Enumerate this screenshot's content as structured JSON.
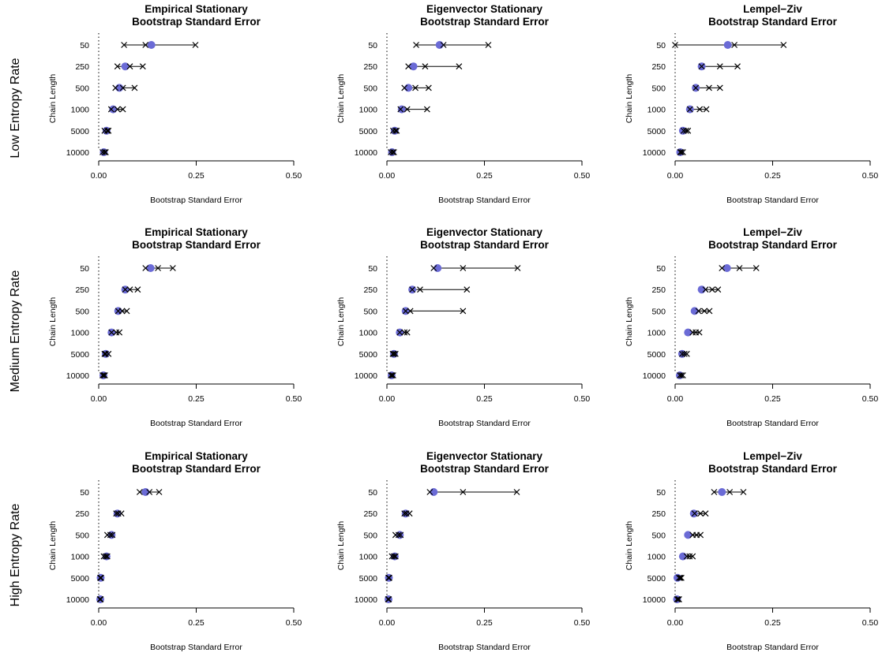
{
  "chart_data": {
    "type": "dot-range",
    "rows": [
      "Low Entropy Rate",
      "Medium Entropy Rate",
      "High Entropy Rate"
    ],
    "columns": [
      {
        "title_line1": "Empirical Stationary",
        "title_line2": "Bootstrap Standard Error"
      },
      {
        "title_line1": "Eigenvector Stationary",
        "title_line2": "Bootstrap Standard Error"
      },
      {
        "title_line1": "Lempel−Ziv",
        "title_line2": "Bootstrap Standard Error"
      }
    ],
    "xlabel": "Bootstrap Standard Error",
    "ylabel": "Chain Length",
    "xlim": [
      0,
      0.5
    ],
    "xticks": [
      "0.00",
      "0.25",
      "0.50"
    ],
    "categories": [
      "50",
      "250",
      "500",
      "1000",
      "5000",
      "10000"
    ],
    "reference_line_x": 0,
    "point_color": "#6b6bd6",
    "panels": [
      [
        [
          {
            "point": 0.135,
            "crosses": [
              0.065,
              0.12,
              0.248
            ]
          },
          {
            "point": 0.068,
            "crosses": [
              0.048,
              0.08,
              0.113
            ]
          },
          {
            "point": 0.053,
            "crosses": [
              0.043,
              0.062,
              0.092
            ]
          },
          {
            "point": 0.037,
            "crosses": [
              0.032,
              0.048,
              0.062
            ]
          },
          {
            "point": 0.02,
            "crosses": [
              0.015,
              0.022,
              0.025
            ]
          },
          {
            "point": 0.013,
            "crosses": [
              0.01,
              0.015,
              0.018
            ]
          }
        ],
        [
          {
            "point": 0.135,
            "crosses": [
              0.075,
              0.145,
              0.26
            ]
          },
          {
            "point": 0.068,
            "crosses": [
              0.055,
              0.098,
              0.185
            ]
          },
          {
            "point": 0.055,
            "crosses": [
              0.045,
              0.073,
              0.107
            ]
          },
          {
            "point": 0.038,
            "crosses": [
              0.035,
              0.052,
              0.103
            ]
          },
          {
            "point": 0.02,
            "crosses": [
              0.016,
              0.022,
              0.025
            ]
          },
          {
            "point": 0.013,
            "crosses": [
              0.01,
              0.015,
              0.018
            ]
          }
        ],
        [
          {
            "point": 0.135,
            "crosses": [
              0.0,
              0.152,
              0.278
            ]
          },
          {
            "point": 0.068,
            "crosses": [
              0.068,
              0.115,
              0.16
            ]
          },
          {
            "point": 0.053,
            "crosses": [
              0.053,
              0.087,
              0.115
            ]
          },
          {
            "point": 0.038,
            "crosses": [
              0.038,
              0.063,
              0.08
            ]
          },
          {
            "point": 0.02,
            "crosses": [
              0.022,
              0.028,
              0.033
            ]
          },
          {
            "point": 0.013,
            "crosses": [
              0.013,
              0.016,
              0.02
            ]
          }
        ]
      ],
      [
        [
          {
            "point": 0.133,
            "crosses": [
              0.12,
              0.152,
              0.19
            ]
          },
          {
            "point": 0.068,
            "crosses": [
              0.068,
              0.08,
              0.1
            ]
          },
          {
            "point": 0.05,
            "crosses": [
              0.05,
              0.06,
              0.072
            ]
          },
          {
            "point": 0.033,
            "crosses": [
              0.033,
              0.045,
              0.053
            ]
          },
          {
            "point": 0.018,
            "crosses": [
              0.015,
              0.018,
              0.025
            ]
          },
          {
            "point": 0.012,
            "crosses": [
              0.01,
              0.013,
              0.016
            ]
          }
        ],
        [
          {
            "point": 0.13,
            "crosses": [
              0.12,
              0.195,
              0.335
            ]
          },
          {
            "point": 0.065,
            "crosses": [
              0.065,
              0.085,
              0.205
            ]
          },
          {
            "point": 0.048,
            "crosses": [
              0.048,
              0.06,
              0.195
            ]
          },
          {
            "point": 0.033,
            "crosses": [
              0.033,
              0.045,
              0.052
            ]
          },
          {
            "point": 0.018,
            "crosses": [
              0.015,
              0.018,
              0.022
            ]
          },
          {
            "point": 0.012,
            "crosses": [
              0.01,
              0.013,
              0.016
            ]
          }
        ],
        [
          {
            "point": 0.133,
            "crosses": [
              0.12,
              0.165,
              0.208
            ]
          },
          {
            "point": 0.068,
            "crosses": [
              0.078,
              0.095,
              0.11
            ]
          },
          {
            "point": 0.05,
            "crosses": [
              0.06,
              0.075,
              0.088
            ]
          },
          {
            "point": 0.033,
            "crosses": [
              0.045,
              0.053,
              0.062
            ]
          },
          {
            "point": 0.018,
            "crosses": [
              0.018,
              0.024,
              0.03
            ]
          },
          {
            "point": 0.012,
            "crosses": [
              0.012,
              0.016,
              0.02
            ]
          }
        ]
      ],
      [
        [
          {
            "point": 0.12,
            "crosses": [
              0.105,
              0.13,
              0.155
            ]
          },
          {
            "point": 0.048,
            "crosses": [
              0.045,
              0.05,
              0.058
            ]
          },
          {
            "point": 0.033,
            "crosses": [
              0.022,
              0.03,
              0.035
            ]
          },
          {
            "point": 0.02,
            "crosses": [
              0.013,
              0.018,
              0.022
            ]
          },
          {
            "point": 0.005,
            "crosses": [
              0.004,
              0.005,
              0.006
            ]
          },
          {
            "point": 0.004,
            "crosses": [
              0.003,
              0.004,
              0.005
            ]
          }
        ],
        [
          {
            "point": 0.12,
            "crosses": [
              0.11,
              0.195,
              0.333
            ]
          },
          {
            "point": 0.048,
            "crosses": [
              0.045,
              0.05,
              0.058
            ]
          },
          {
            "point": 0.033,
            "crosses": [
              0.022,
              0.03,
              0.035
            ]
          },
          {
            "point": 0.02,
            "crosses": [
              0.013,
              0.018,
              0.022
            ]
          },
          {
            "point": 0.005,
            "crosses": [
              0.004,
              0.005,
              0.006
            ]
          },
          {
            "point": 0.004,
            "crosses": [
              0.003,
              0.004,
              0.005
            ]
          }
        ],
        [
          {
            "point": 0.12,
            "crosses": [
              0.1,
              0.14,
              0.175
            ]
          },
          {
            "point": 0.048,
            "crosses": [
              0.05,
              0.065,
              0.078
            ]
          },
          {
            "point": 0.033,
            "crosses": [
              0.045,
              0.055,
              0.065
            ]
          },
          {
            "point": 0.02,
            "crosses": [
              0.03,
              0.037,
              0.045
            ]
          },
          {
            "point": 0.006,
            "crosses": [
              0.01,
              0.013,
              0.016
            ]
          },
          {
            "point": 0.005,
            "crosses": [
              0.005,
              0.008,
              0.01
            ]
          }
        ]
      ]
    ]
  }
}
